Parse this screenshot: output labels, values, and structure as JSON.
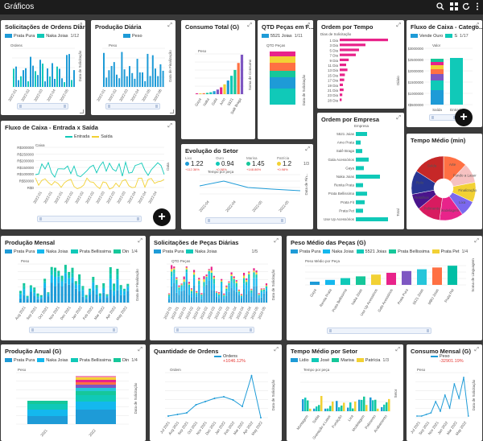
{
  "app": {
    "title": "Gráficos"
  },
  "colors": {
    "turquoise": "#10c9b8",
    "blue": "#1e9bd7",
    "pink": "#e8238a",
    "yellow": "#f2d134",
    "green": "#16c79a"
  },
  "panels": {
    "p1": {
      "title": "Solicitações de Ordens Diárias",
      "legend": [
        "Prata Pura",
        "Naka Joias"
      ],
      "pager": "1/12",
      "ylabel": "Ordens",
      "xlabel": "Data de Solicitação"
    },
    "p2": {
      "title": "Produção Diária",
      "legend": [
        "Peso"
      ],
      "ylabel": "Peso",
      "xlabel": "Data de Finalização"
    },
    "p3": {
      "title": "Consumo Total (G)",
      "ylabel": "Peso",
      "xlabel": "Soma de Consumo"
    },
    "p4": {
      "title": "QTD Peças em F...",
      "legend": [
        "5521 Joias"
      ],
      "pager": "1/11",
      "ylabel": "QTD Peças",
      "xlabel": "Data de Solicitação"
    },
    "p5": {
      "title": "Ordem por Tempo",
      "ylabel": "Dias de Solicitação",
      "xlabel": "Diário",
      "cats": [
        "1 Dia",
        "3 Dia",
        "5 Dia",
        "7 Dia",
        "9 Dia",
        "11 Dia",
        "13 Dia",
        "15 Dia",
        "17 Dia",
        "19 Dia",
        "21 Dia",
        "23 Dia",
        "28 Dia"
      ]
    },
    "p6": {
      "title": "Fluxo de Caixa - Catego...",
      "legend": [
        "Vende Ouro",
        "S"
      ],
      "pager": "1/17",
      "ylabel": "Valor",
      "cats": [
        "Saída",
        "Entrada"
      ]
    },
    "p7": {
      "title": "Fluxo de Caixa - Entrada x Saída",
      "legend": [
        "Entrada",
        "Saída"
      ],
      "ylabel": "Caixa",
      "xlabel": "Data"
    },
    "p8": {
      "title": "Evolução do Setor",
      "pager": "1/3",
      "ylabel": "Tempo por peça",
      "xlabel": "Data de Fin...",
      "kpis": [
        {
          "name": "Lixo",
          "value": "1.22",
          "delta": "+112.36%"
        },
        {
          "name": "Ouro",
          "value": "0.94",
          "delta": "+0.98%"
        },
        {
          "name": "Marisa",
          "value": "1.45",
          "delta": "+148.86%"
        },
        {
          "name": "Patrícia",
          "value": "1.2",
          "delta": "+0.98%"
        }
      ]
    },
    "p9": {
      "title": "Ordem por Empresa",
      "ylabel": "Empresa",
      "xlabel": "Total",
      "cats": [
        "5521 Joias",
        "Amo Prata",
        "Salê Braga",
        "Gala Acessórios",
        "Gaya",
        "Naka Joias",
        "Renita Prata",
        "Prata Bellissima",
        "Prata Fit",
        "Prata Pet",
        "Use Up Acessórios"
      ]
    },
    "p10": {
      "title": "Tempo Médio (min)",
      "slices": [
        "Arte",
        "Fundo a Laser",
        "Finalização",
        "Lixa",
        "Modelagem",
        "Polimento",
        "Retalhos",
        "Rolo",
        "Solda"
      ]
    },
    "p11": {
      "title": "Produção Mensal",
      "legend": [
        "Prata Pura",
        "Naka Joias",
        "Prata Bellissima",
        "Din"
      ],
      "pager": "1/4",
      "ylabel": "Peso",
      "xlabel": "Data de Finalização",
      "cats": [
        "Aug 2021",
        "Sep 2021",
        "Oct 2021",
        "Nov 2021",
        "Dec 2021",
        "Jan 2022",
        "Feb 2022",
        "Mar 2022",
        "Apr 2022",
        "May 2022"
      ]
    },
    "p12": {
      "title": "Solicitações de Peças Diárias",
      "legend": [
        "Prata Pura",
        "Naka Joias"
      ],
      "pager": "1/5",
      "ylabel": "QTD Peças",
      "xlabel": "Data de Solicitação"
    },
    "p13": {
      "title": "Peso Médio das Peças (G)",
      "legend": [
        "Prata Pura",
        "Naka Joias",
        "5521 Joias",
        "Prata Bellissima",
        "Prata Pet"
      ],
      "pager": "1/4",
      "ylabel": "Peso Médio por Peça",
      "xlabel": "Soma de Linguagem",
      "cats": [
        "Gaya",
        "Renita Prata",
        "Prata Bellissima",
        "Naka Joias",
        "Use Up Acessórios",
        "Gala Acessórios",
        "Prata Pura",
        "5521 Joias",
        "MBU Joias",
        "Prata Pet"
      ]
    },
    "p14": {
      "title": "Produção Anual (G)",
      "legend": [
        "Prata Pura",
        "Naka Joias",
        "Prata Bellissima",
        "Din"
      ],
      "pager": "1/4",
      "ylabel": "Peso",
      "xlabel": "Data de Solicitação",
      "cats": [
        "2021",
        "2022"
      ]
    },
    "p15": {
      "title": "Quantidade de Ordens",
      "legend": [
        "Ordens"
      ],
      "delta": "+1046.12%",
      "ylabel": "Ordem",
      "xlabel": "Data de Solicitação",
      "cats": [
        "Jul 2021",
        "Aug 2021",
        "Sep 2021",
        "Oct 2021",
        "Nov 2021",
        "Dec 2021",
        "Jan 2022",
        "Feb 2022",
        "Mar 2022",
        "Apr 2022",
        "May 2022"
      ]
    },
    "p16": {
      "title": "Tempo Médio por Setor",
      "legend": [
        "Lidio",
        "José",
        "Marisa",
        "Patrícia"
      ],
      "pager": "1/3",
      "ylabel": "Tempo por peça",
      "xlabel": "Setor",
      "cats": [
        "Montagem",
        "Solda",
        "Gravação a Laser",
        "Fundição",
        "Lixa",
        "Modelagem",
        "Polimento",
        "Acabamento"
      ]
    },
    "p17": {
      "title": "Consumo Mensal (G)",
      "legend": [
        "Peso"
      ],
      "delta": "-32901.19%",
      "ylabel": "Peso",
      "xlabel": "Data de Solicitação",
      "cats": [
        "Jul 2021",
        "Sep 2021",
        "Nov 2021",
        "Jan 2022",
        "Mar 2022",
        "May 2022"
      ]
    }
  }
}
